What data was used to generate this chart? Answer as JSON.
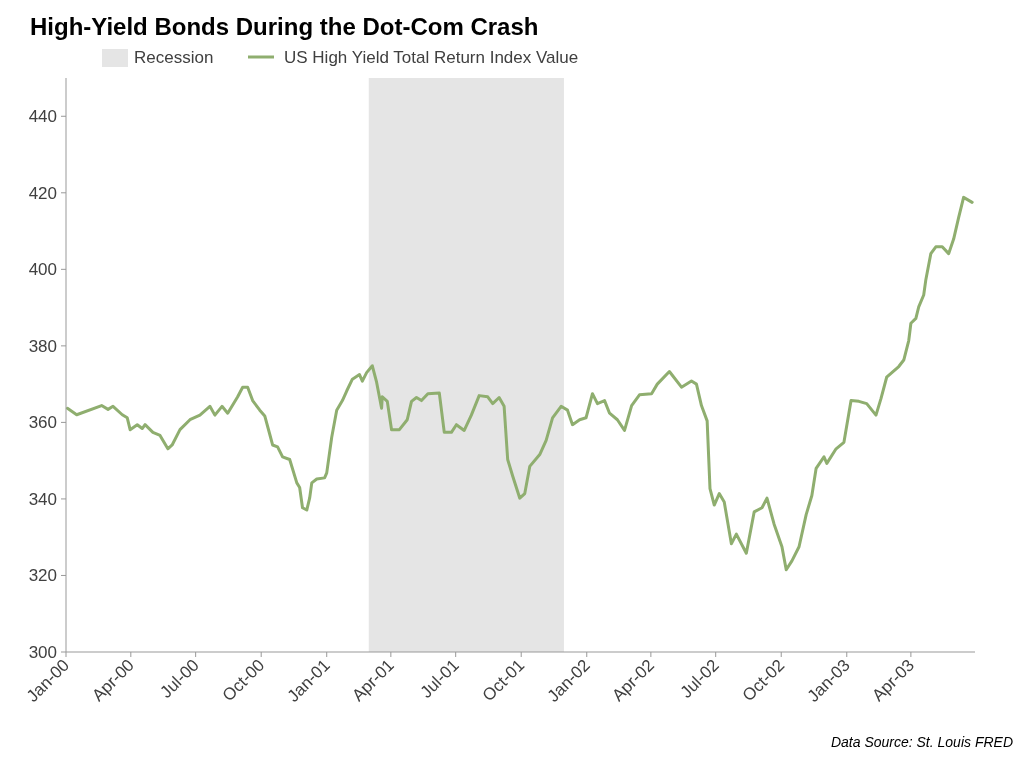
{
  "chart_data": {
    "type": "line",
    "title": "High-Yield Bonds During the Dot-Com Crash",
    "annotations": [
      "Data Source: St. Louis FRED"
    ],
    "xlim": [
      "2000-01-01",
      "2003-06-30"
    ],
    "xticks": [
      {
        "value": "2000-01-01",
        "label": "Jan-00"
      },
      {
        "value": "2000-04-01",
        "label": "Apr-00"
      },
      {
        "value": "2000-07-01",
        "label": "Jul-00"
      },
      {
        "value": "2000-10-01",
        "label": "Oct-00"
      },
      {
        "value": "2001-01-01",
        "label": "Jan-01"
      },
      {
        "value": "2001-04-01",
        "label": "Apr-01"
      },
      {
        "value": "2001-07-01",
        "label": "Jul-01"
      },
      {
        "value": "2001-10-01",
        "label": "Oct-01"
      },
      {
        "value": "2002-01-01",
        "label": "Jan-02"
      },
      {
        "value": "2002-04-01",
        "label": "Apr-02"
      },
      {
        "value": "2002-07-01",
        "label": "Jul-02"
      },
      {
        "value": "2002-10-01",
        "label": "Oct-02"
      },
      {
        "value": "2003-01-01",
        "label": "Jan-03"
      },
      {
        "value": "2003-04-01",
        "label": "Apr-03"
      }
    ],
    "ylim": [
      300,
      450
    ],
    "yticks": [
      300,
      320,
      340,
      360,
      380,
      400,
      420,
      440
    ],
    "grid": false,
    "legend": "top left",
    "bands": [
      {
        "axis": "x",
        "from": "2001-03-01",
        "to": "2001-11-30",
        "label": "Recession",
        "color": "#e5e5e5"
      }
    ],
    "x": [
      "2000-01-03",
      "2000-01-16",
      "2000-02-20",
      "2000-02-29",
      "2000-03-07",
      "2000-03-20",
      "2000-03-27",
      "2000-03-31",
      "2000-04-10",
      "2000-04-17",
      "2000-04-21",
      "2000-05-02",
      "2000-05-12",
      "2000-05-23",
      "2000-05-29",
      "2000-06-09",
      "2000-06-23",
      "2000-07-07",
      "2000-07-21",
      "2000-07-28",
      "2000-08-07",
      "2000-08-15",
      "2000-08-29",
      "2000-09-05",
      "2000-09-12",
      "2000-09-19",
      "2000-09-29",
      "2000-10-06",
      "2000-10-13",
      "2000-10-17",
      "2000-10-24",
      "2000-10-31",
      "2000-11-10",
      "2000-11-20",
      "2000-11-24",
      "2000-11-28",
      "2000-12-04",
      "2000-12-08",
      "2000-12-11",
      "2000-12-18",
      "2000-12-29",
      "2001-01-01",
      "2001-01-08",
      "2001-01-15",
      "2001-01-23",
      "2001-01-29",
      "2001-02-06",
      "2001-02-16",
      "2001-02-20",
      "2001-02-26",
      "2001-03-06",
      "2001-03-12",
      "2001-03-19",
      "2001-03-20",
      "2001-03-27",
      "2001-04-02",
      "2001-04-13",
      "2001-04-24",
      "2001-04-30",
      "2001-05-07",
      "2001-05-14",
      "2001-05-23",
      "2001-06-08",
      "2001-06-15",
      "2001-06-25",
      "2001-07-02",
      "2001-07-13",
      "2001-07-23",
      "2001-08-03",
      "2001-08-15",
      "2001-08-22",
      "2001-08-31",
      "2001-09-07",
      "2001-09-12",
      "2001-09-19",
      "2001-09-29",
      "2001-10-06",
      "2001-10-13",
      "2001-10-27",
      "2001-11-05",
      "2001-11-14",
      "2001-11-26",
      "2001-12-05",
      "2001-12-12",
      "2001-12-22",
      "2001-12-31",
      "2002-01-09",
      "2002-01-16",
      "2002-01-26",
      "2002-02-02",
      "2002-02-13",
      "2002-02-23",
      "2002-03-05",
      "2002-03-16",
      "2002-04-02",
      "2002-04-10",
      "2002-04-27",
      "2002-05-14",
      "2002-05-28",
      "2002-06-04",
      "2002-06-11",
      "2002-06-19",
      "2002-06-23",
      "2002-06-29",
      "2002-07-06",
      "2002-07-13",
      "2002-07-23",
      "2002-07-30",
      "2002-08-13",
      "2002-08-24",
      "2002-09-04",
      "2002-09-11",
      "2002-09-21",
      "2002-10-02",
      "2002-10-08",
      "2002-10-16",
      "2002-10-26",
      "2002-11-05",
      "2002-11-13",
      "2002-11-19",
      "2002-11-30",
      "2002-12-04",
      "2002-12-17",
      "2002-12-28",
      "2003-01-07",
      "2003-01-18",
      "2003-01-29",
      "2003-02-11",
      "2003-02-18",
      "2003-02-26",
      "2003-03-15",
      "2003-03-22",
      "2003-03-29",
      "2003-04-01",
      "2003-04-08",
      "2003-04-12",
      "2003-04-19",
      "2003-04-22",
      "2003-04-29",
      "2003-05-06",
      "2003-05-15",
      "2003-05-24",
      "2003-05-31",
      "2003-06-07",
      "2003-06-14",
      "2003-06-26"
    ],
    "series": [
      {
        "name": "US High Yield Total Return Index Value",
        "color": "#8fae6f",
        "values": [
          363.7,
          362,
          364.4,
          363.4,
          364.2,
          362,
          361.2,
          358.1,
          359.4,
          358.4,
          359.4,
          357.4,
          356.6,
          353.1,
          354.1,
          358.1,
          360.7,
          361.9,
          364.2,
          361.9,
          364.2,
          362.4,
          366.7,
          369.2,
          369.2,
          365.7,
          363.2,
          361.7,
          356.9,
          354.1,
          353.6,
          351,
          350.3,
          344.2,
          343,
          337.7,
          337.1,
          340.2,
          344.2,
          345.2,
          345.5,
          346.8,
          356.1,
          363.2,
          365.7,
          368.2,
          371.3,
          372.5,
          370.8,
          373,
          374.8,
          370.5,
          363.7,
          366.7,
          365.5,
          358.1,
          358.1,
          360.7,
          365.5,
          366.5,
          365.7,
          367.5,
          367.7,
          357.4,
          357.4,
          359.4,
          357.9,
          361.9,
          367,
          366.7,
          364.9,
          366.5,
          364.2,
          350.3,
          346,
          340.2,
          341.4,
          348.5,
          351.6,
          355.3,
          361.2,
          364.2,
          363.2,
          359.4,
          360.7,
          361.2,
          367.5,
          364.9,
          365.7,
          362.4,
          360.7,
          357.9,
          364.4,
          367.2,
          367.5,
          370,
          373.3,
          369.2,
          370.8,
          370,
          364.4,
          360.4,
          342.7,
          338.4,
          341.4,
          339.2,
          328.3,
          330.8,
          325.8,
          336.6,
          337.7,
          340.2,
          333.4,
          327.5,
          321.5,
          323.8,
          327.5,
          335.9,
          340.9,
          348,
          351,
          349.3,
          353.1,
          354.8,
          365.7,
          365.5,
          364.9,
          361.9,
          366.2,
          371.8,
          374.6,
          376.3,
          381.4,
          385.9,
          387.2,
          390.2,
          393.3,
          397.3,
          404.1,
          405.9,
          405.9,
          404.1,
          407.9,
          413.5,
          418.8,
          417.5
        ]
      }
    ]
  }
}
